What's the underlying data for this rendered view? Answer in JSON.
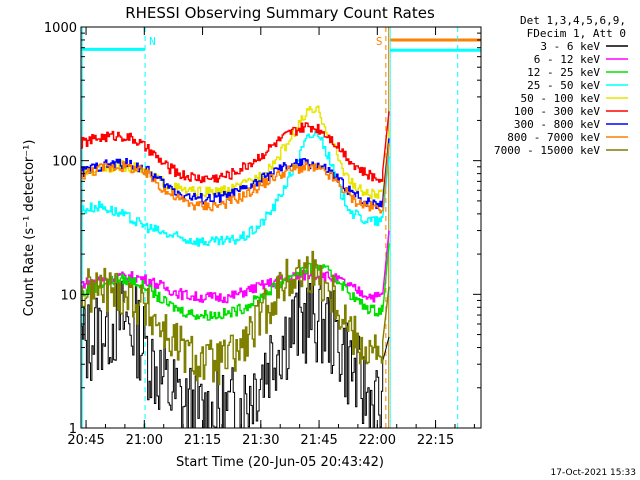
{
  "chart_data": {
    "type": "line",
    "title": "RHESSI Observing Summary Count Rates",
    "xlabel": "Start Time (20-Jun-05 20:43:42)",
    "ylabel": "Count Rate (s⁻¹ detector⁻¹)",
    "x_unit": "minutes after 20:43:42",
    "xlim": [
      0,
      103
    ],
    "x_ticks": [
      {
        "t": 1.3,
        "label": "20:45"
      },
      {
        "t": 16.3,
        "label": "21:00"
      },
      {
        "t": 31.3,
        "label": "21:15"
      },
      {
        "t": 46.3,
        "label": "21:30"
      },
      {
        "t": 61.3,
        "label": "21:45"
      },
      {
        "t": 76.3,
        "label": "22:00"
      },
      {
        "t": 91.3,
        "label": "22:15"
      }
    ],
    "yscale": "log",
    "ylim": [
      1,
      1000
    ],
    "y_ticks": [
      {
        "v": 1,
        "label": "1"
      },
      {
        "v": 10,
        "label": "10"
      },
      {
        "v": 100,
        "label": "100"
      },
      {
        "v": 1000,
        "label": "1000"
      }
    ],
    "legend_header": [
      "Det 1,3,4,5,6,9,",
      "FDecim 1, Att 0"
    ],
    "legend_position": "right",
    "x": [
      0,
      5,
      10,
      14,
      18,
      22,
      26,
      30,
      34,
      38,
      42,
      46,
      50,
      54,
      58,
      61,
      64,
      67,
      70,
      73,
      76,
      78
    ],
    "series": [
      {
        "name": "3 - 6 keV",
        "color": "#000000",
        "values": [
          4,
          5.5,
          6.5,
          5.5,
          3.2,
          2,
          1.5,
          1.3,
          1.2,
          1.3,
          1.6,
          2.5,
          4,
          5.5,
          6.5,
          6.5,
          5.5,
          4,
          2.6,
          1.8,
          1.5,
          1.6
        ]
      },
      {
        "name": "6 - 12 keV",
        "color": "#ff00ff",
        "values": [
          12,
          13,
          13.5,
          13.5,
          12.5,
          11,
          10,
          9.5,
          9.5,
          9.5,
          10.5,
          11.5,
          12.5,
          13.5,
          14,
          14,
          13.5,
          12.5,
          11,
          10,
          9.5,
          10
        ]
      },
      {
        "name": "12 - 25 keV",
        "color": "#00e000",
        "values": [
          10,
          12,
          13,
          12.5,
          10.5,
          8.5,
          7.5,
          7,
          7,
          7.2,
          8,
          9.5,
          11.5,
          14,
          15.5,
          16,
          14.5,
          12,
          9.5,
          8,
          7.5,
          8
        ]
      },
      {
        "name": "25 - 50 keV",
        "color": "#00ffff",
        "values": [
          43,
          46,
          40,
          35,
          31,
          28,
          26,
          25,
          24.5,
          25,
          27,
          33,
          47,
          80,
          145,
          165,
          100,
          55,
          40,
          36,
          35,
          36
        ]
      },
      {
        "name": "50 - 100 keV",
        "color": "#e6e600",
        "values": [
          80,
          88,
          92,
          88,
          78,
          66,
          60,
          58,
          58,
          60,
          66,
          78,
          100,
          150,
          230,
          235,
          150,
          90,
          65,
          57,
          55,
          56
        ]
      },
      {
        "name": "100 - 300 keV",
        "color": "#ff0000",
        "values": [
          135,
          150,
          155,
          142,
          115,
          90,
          78,
          74,
          74,
          78,
          90,
          108,
          135,
          162,
          180,
          175,
          150,
          120,
          95,
          80,
          74,
          78
        ]
      },
      {
        "name": "300 - 800 keV",
        "color": "#0000ff",
        "values": [
          82,
          92,
          96,
          92,
          80,
          64,
          56,
          52,
          52,
          55,
          61,
          71,
          83,
          93,
          96,
          92,
          82,
          68,
          56,
          50,
          48,
          49
        ]
      },
      {
        "name": "800 - 7000 keV",
        "color": "#ff7f00",
        "values": [
          78,
          88,
          91,
          87,
          75,
          58,
          50,
          46,
          46,
          49,
          55,
          65,
          77,
          86,
          89,
          86,
          77,
          63,
          51,
          46,
          44,
          45
        ]
      },
      {
        "name": "7000 - 15000 keV",
        "color": "#7f7f00",
        "values": [
          10,
          11,
          10.5,
          9,
          7,
          5,
          3.8,
          3.2,
          3,
          3.3,
          4.2,
          6.5,
          10,
          13.5,
          15,
          14,
          11,
          7.5,
          5,
          4,
          3.5,
          3.8
        ]
      }
    ],
    "annotations": [
      {
        "label": "N",
        "t": 16.5,
        "color": "#00ffff"
      },
      {
        "label": "S",
        "t": 78.5,
        "color": "#ff7f00"
      }
    ],
    "attenuator_bars": [
      {
        "color": "#00ffff",
        "t0": 0,
        "t1": 16.5,
        "value": 680
      },
      {
        "color": "#ff7f00",
        "t0": 79.5,
        "t1": 103,
        "value": 800
      },
      {
        "color": "#00ffff",
        "t0": 79.5,
        "t1": 103,
        "value": 670
      }
    ],
    "footer_date": "17-Oct-2021 15:33"
  }
}
